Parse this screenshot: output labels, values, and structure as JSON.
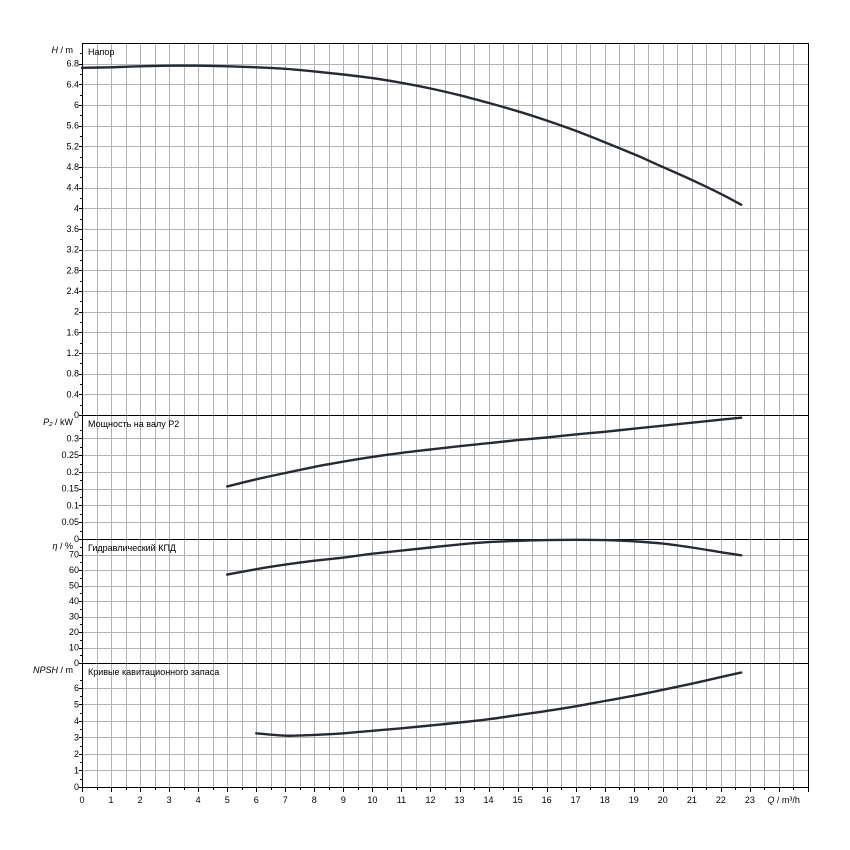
{
  "chart_data": [
    {
      "type": "line",
      "title": "Напор",
      "ylabel": "H / m",
      "xlabel": "Q / m³/h",
      "xlim": [
        0,
        25
      ],
      "ylim": [
        0,
        7.2
      ],
      "yticks": [
        0,
        0.4,
        0.8,
        1.2,
        1.6,
        2,
        2.4,
        2.8,
        3.2,
        3.6,
        4,
        4.4,
        4.8,
        5.2,
        5.6,
        6,
        6.4,
        6.8
      ],
      "grid": true,
      "series": [
        {
          "x": [
            0,
            1,
            2,
            3,
            4,
            5,
            6,
            7,
            8,
            9,
            10,
            11,
            12,
            13,
            14,
            15,
            16,
            17,
            18,
            19,
            20,
            21,
            22,
            22.7
          ],
          "y": [
            6.72,
            6.73,
            6.75,
            6.76,
            6.76,
            6.75,
            6.73,
            6.7,
            6.65,
            6.59,
            6.52,
            6.43,
            6.32,
            6.19,
            6.04,
            5.88,
            5.7,
            5.5,
            5.28,
            5.05,
            4.8,
            4.55,
            4.28,
            4.07
          ]
        }
      ]
    },
    {
      "type": "line",
      "title": "Мощность на валу P2",
      "ylabel": "P₂ / kW",
      "ylim": [
        0,
        0.37
      ],
      "yticks": [
        0,
        0.05,
        0.1,
        0.15,
        0.2,
        0.25,
        0.3
      ],
      "grid": true,
      "series": [
        {
          "x": [
            5,
            6,
            7,
            8,
            9,
            10,
            11,
            12,
            13,
            14,
            15,
            16,
            17,
            18,
            19,
            20,
            21,
            22,
            22.7
          ],
          "y": [
            0.157,
            0.178,
            0.197,
            0.215,
            0.231,
            0.245,
            0.257,
            0.267,
            0.277,
            0.286,
            0.295,
            0.303,
            0.312,
            0.32,
            0.329,
            0.338,
            0.347,
            0.356,
            0.362
          ]
        }
      ]
    },
    {
      "type": "line",
      "title": "Гидравлический КПД",
      "ylabel": "η / %",
      "ylim": [
        0,
        80
      ],
      "yticks": [
        0,
        10,
        20,
        30,
        40,
        50,
        60,
        70
      ],
      "grid": true,
      "series": [
        {
          "x": [
            5,
            6,
            7,
            8,
            9,
            10,
            11,
            12,
            13,
            14,
            15,
            16,
            17,
            18,
            19,
            20,
            21,
            22,
            22.7
          ],
          "y": [
            57,
            60.5,
            63.5,
            66,
            68,
            70.5,
            72.5,
            74.5,
            76.5,
            78,
            78.8,
            79.3,
            79.5,
            79.3,
            78.5,
            77,
            74.5,
            71.5,
            69.5
          ]
        }
      ]
    },
    {
      "type": "line",
      "title": "Кривые кавитационного запаса",
      "ylabel": "NPSH / m",
      "ylim": [
        0,
        7.5
      ],
      "yticks": [
        0,
        1,
        2,
        3,
        4,
        5,
        6
      ],
      "grid": true,
      "series": [
        {
          "x": [
            6,
            7,
            8,
            9,
            10,
            11,
            12,
            13,
            14,
            15,
            16,
            17,
            18,
            19,
            20,
            21,
            22,
            22.7
          ],
          "y": [
            3.25,
            3.1,
            3.15,
            3.25,
            3.4,
            3.55,
            3.72,
            3.9,
            4.1,
            4.35,
            4.6,
            4.88,
            5.2,
            5.52,
            5.88,
            6.25,
            6.65,
            6.92
          ]
        }
      ]
    }
  ],
  "x_axis": {
    "ticks": [
      0,
      1,
      2,
      3,
      4,
      5,
      6,
      7,
      8,
      9,
      10,
      11,
      12,
      13,
      14,
      15,
      16,
      17,
      18,
      19,
      20,
      21,
      22,
      23
    ],
    "label_q": "Q",
    "label_unit": " / m³/h"
  }
}
